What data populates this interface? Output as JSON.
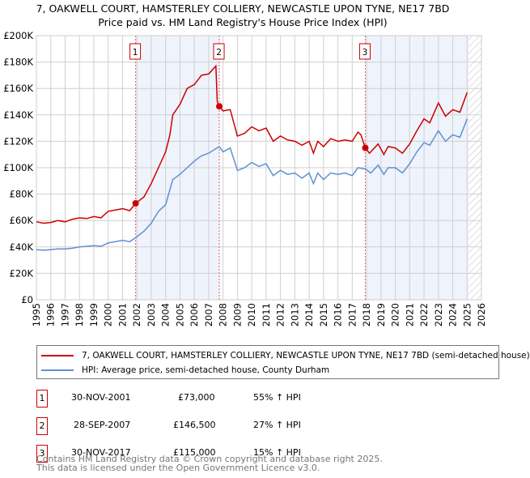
{
  "title": "7, OAKWELL COURT, HAMSTERLEY COLLIERY, NEWCASTLE UPON TYNE, NE17 7BD",
  "subtitle": "Price paid vs. HM Land Registry's House Price Index (HPI)",
  "chart_data": {
    "type": "line",
    "ylim": [
      0,
      200000
    ],
    "xlim": [
      1995,
      2026
    ],
    "yticks": [
      {
        "v": 0,
        "l": "£0"
      },
      {
        "v": 20000,
        "l": "£20K"
      },
      {
        "v": 40000,
        "l": "£40K"
      },
      {
        "v": 60000,
        "l": "£60K"
      },
      {
        "v": 80000,
        "l": "£80K"
      },
      {
        "v": 100000,
        "l": "£100K"
      },
      {
        "v": 120000,
        "l": "£120K"
      },
      {
        "v": 140000,
        "l": "£140K"
      },
      {
        "v": 160000,
        "l": "£160K"
      },
      {
        "v": 180000,
        "l": "£180K"
      },
      {
        "v": 200000,
        "l": "£200K"
      }
    ],
    "xticks": [
      "1995",
      "1996",
      "1997",
      "1998",
      "1999",
      "2000",
      "2001",
      "2002",
      "2003",
      "2004",
      "2005",
      "2006",
      "2007",
      "2008",
      "2009",
      "2010",
      "2011",
      "2012",
      "2013",
      "2014",
      "2015",
      "2016",
      "2017",
      "2018",
      "2019",
      "2020",
      "2021",
      "2022",
      "2023",
      "2024",
      "2025",
      "2026"
    ],
    "shaded": [
      [
        2001.91,
        2007.74
      ],
      [
        2017.91,
        2025.1
      ]
    ],
    "future_from": 2025.1,
    "series": [
      {
        "name": "7, OAKWELL COURT, HAMSTERLEY COLLIERY, NEWCASTLE UPON TYNE, NE17 7BD (semi-detached house)",
        "color": "#cc0000",
        "x": [
          1995,
          1995.5,
          1996,
          1996.5,
          1997,
          1997.5,
          1998,
          1998.5,
          1999,
          1999.5,
          2000,
          2000.5,
          2001,
          2001.5,
          2001.91,
          2002.5,
          2003,
          2003.5,
          2004,
          2004.3,
          2004.5,
          2005,
          2005.5,
          2006,
          2006.5,
          2007,
          2007.5,
          2007.6,
          2007.74,
          2008,
          2008.5,
          2009,
          2009.5,
          2010,
          2010.5,
          2011,
          2011.5,
          2012,
          2012.5,
          2013,
          2013.5,
          2014,
          2014.3,
          2014.6,
          2015,
          2015.5,
          2016,
          2016.5,
          2017,
          2017.4,
          2017.6,
          2017.91,
          2018.2,
          2018.8,
          2019.2,
          2019.5,
          2020,
          2020.5,
          2021,
          2021.5,
          2022,
          2022.4,
          2023,
          2023.5,
          2024,
          2024.5,
          2025
        ],
        "y": [
          59000,
          58000,
          58500,
          60000,
          59000,
          61000,
          62000,
          61500,
          63000,
          62000,
          67000,
          68000,
          69000,
          67500,
          73000,
          78000,
          88000,
          100000,
          112000,
          125000,
          140000,
          148000,
          160000,
          163000,
          170000,
          171000,
          177000,
          150000,
          146500,
          143000,
          144000,
          124000,
          126000,
          131000,
          128000,
          130000,
          120000,
          124000,
          121000,
          120000,
          117000,
          120000,
          111000,
          120000,
          116000,
          122000,
          120000,
          121000,
          120000,
          127000,
          125000,
          115000,
          111000,
          118000,
          110000,
          116000,
          115000,
          111000,
          118000,
          128000,
          137000,
          134000,
          149000,
          139000,
          144000,
          142000,
          157000
        ]
      },
      {
        "name": "HPI: Average price, semi-detached house, County Durham",
        "color": "#6090d0",
        "x": [
          1995,
          1995.5,
          1996,
          1996.5,
          1997,
          1997.5,
          1998,
          1998.5,
          1999,
          1999.5,
          2000,
          2000.5,
          2001,
          2001.5,
          2001.91,
          2002.5,
          2003,
          2003.5,
          2004,
          2004.5,
          2005,
          2005.5,
          2006,
          2006.5,
          2007,
          2007.74,
          2008,
          2008.5,
          2009,
          2009.5,
          2010,
          2010.5,
          2011,
          2011.5,
          2012,
          2012.5,
          2013,
          2013.5,
          2014,
          2014.3,
          2014.6,
          2015,
          2015.5,
          2016,
          2016.5,
          2017,
          2017.4,
          2017.91,
          2018.3,
          2018.8,
          2019.2,
          2019.5,
          2020,
          2020.5,
          2021,
          2021.5,
          2022,
          2022.4,
          2023,
          2023.5,
          2024,
          2024.5,
          2025
        ],
        "y": [
          38000,
          37500,
          38000,
          38500,
          38500,
          39000,
          40000,
          40500,
          41000,
          40500,
          43000,
          44000,
          45000,
          44000,
          47000,
          52000,
          58000,
          67000,
          72000,
          91000,
          95000,
          100000,
          105000,
          109000,
          111000,
          116000,
          112000,
          115000,
          98000,
          100000,
          104000,
          101000,
          103000,
          94000,
          98000,
          95000,
          96000,
          92000,
          96000,
          88000,
          96000,
          91000,
          96000,
          95000,
          96000,
          94000,
          100000,
          99000,
          96000,
          102000,
          95000,
          100000,
          100000,
          96000,
          103000,
          112000,
          119000,
          117000,
          128000,
          120000,
          125000,
          123000,
          137000
        ]
      }
    ],
    "sales": [
      {
        "label": "1",
        "x": 2001.91,
        "y": 73000
      },
      {
        "label": "2",
        "x": 2007.74,
        "y": 146500
      },
      {
        "label": "3",
        "x": 2017.91,
        "y": 115000
      }
    ]
  },
  "legend": {
    "property": "7, OAKWELL COURT, HAMSTERLEY COLLIERY, NEWCASTLE UPON TYNE, NE17 7BD (semi-detached house)",
    "hpi": "HPI: Average price, semi-detached house, County Durham"
  },
  "transactions": [
    {
      "num": "1",
      "date": "30-NOV-2001",
      "price": "£73,000",
      "hpi": "55% ↑ HPI"
    },
    {
      "num": "2",
      "date": "28-SEP-2007",
      "price": "£146,500",
      "hpi": "27% ↑ HPI"
    },
    {
      "num": "3",
      "date": "30-NOV-2017",
      "price": "£115,000",
      "hpi": "15% ↑ HPI"
    }
  ],
  "footer": {
    "line1": "Contains HM Land Registry data © Crown copyright and database right 2025.",
    "line2": "This data is licensed under the Open Government Licence v3.0."
  }
}
